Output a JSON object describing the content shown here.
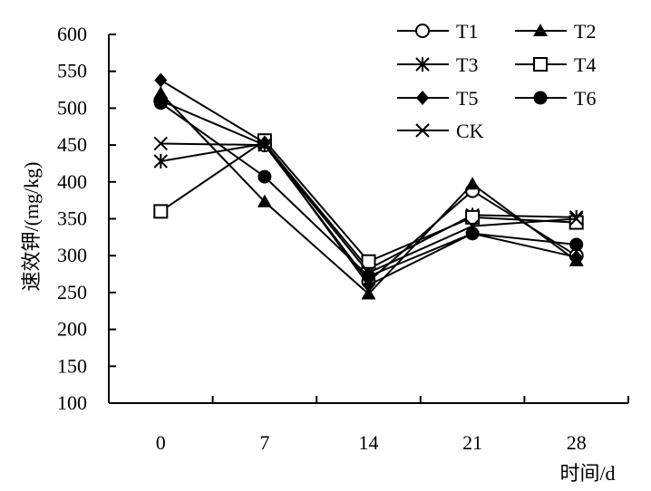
{
  "chart_data": {
    "type": "line",
    "x": [
      0,
      7,
      14,
      21,
      28
    ],
    "categories": [
      "0",
      "7",
      "14",
      "21",
      "28"
    ],
    "xlabel": "时间/d",
    "ylabel": "速效钾/(mg/kg)",
    "ylim": [
      100,
      600
    ],
    "yticks": [
      100,
      150,
      200,
      250,
      300,
      350,
      400,
      450,
      500,
      550,
      600
    ],
    "grid": false,
    "legend_position": "top-right",
    "series": [
      {
        "name": "T1",
        "marker": "open-circle",
        "values": [
          510,
          450,
          265,
          388,
          300
        ]
      },
      {
        "name": "T2",
        "marker": "filled-triangle",
        "values": [
          520,
          373,
          248,
          397,
          293
        ]
      },
      {
        "name": "T3",
        "marker": "asterisk",
        "values": [
          428,
          452,
          282,
          355,
          352
        ]
      },
      {
        "name": "T4",
        "marker": "open-square",
        "values": [
          360,
          456,
          292,
          352,
          345
        ]
      },
      {
        "name": "T5",
        "marker": "filled-diamond",
        "values": [
          538,
          453,
          260,
          330,
          298
        ]
      },
      {
        "name": "T6",
        "marker": "filled-circle",
        "values": [
          507,
          407,
          272,
          330,
          315
        ]
      },
      {
        "name": "CK",
        "marker": "x-cross",
        "values": [
          452,
          450,
          277,
          340,
          350
        ]
      }
    ],
    "line_color": "#000000"
  }
}
